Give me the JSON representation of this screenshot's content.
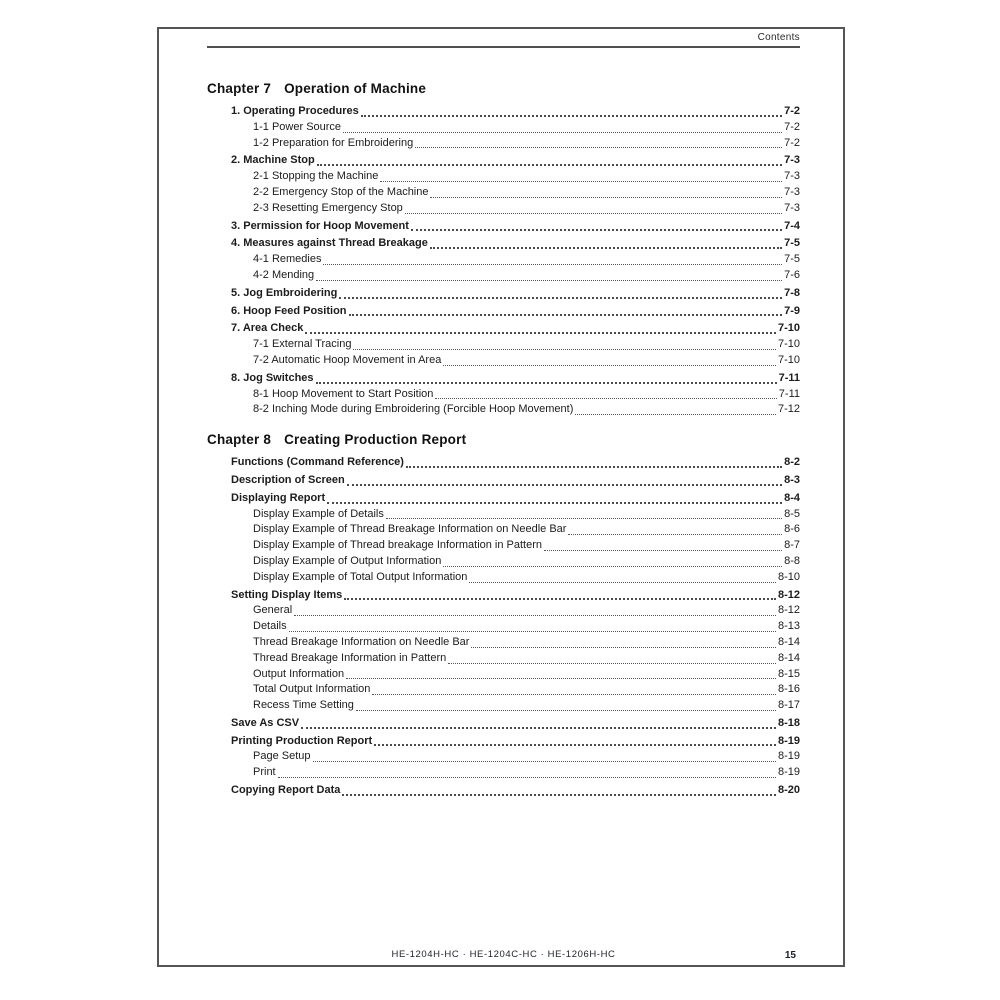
{
  "header": {
    "label": "Contents"
  },
  "footer": {
    "models": "HE-1204H-HC · HE-1204C-HC · HE-1206H-HC",
    "page_number": "15"
  },
  "colors": {
    "text": "#1c1c1c",
    "rule": "#4f4f4f",
    "leader": "#4a4a4a",
    "border": "#555555"
  },
  "toc": {
    "chapters": [
      {
        "label": "Chapter 7",
        "title": "Operation of Machine",
        "entries": [
          {
            "text": "1. Operating Procedures",
            "page": "7-2",
            "level": 1
          },
          {
            "text": "1-1 Power Source",
            "page": "7-2",
            "level": 2
          },
          {
            "text": "1-2 Preparation for Embroidering",
            "page": "7-2",
            "level": 2
          },
          {
            "text": "2. Machine Stop",
            "page": "7-3",
            "level": 1
          },
          {
            "text": "2-1 Stopping the Machine",
            "page": "7-3",
            "level": 2
          },
          {
            "text": "2-2 Emergency Stop of the Machine",
            "page": "7-3",
            "level": 2
          },
          {
            "text": "2-3 Resetting Emergency Stop",
            "page": "7-3",
            "level": 2
          },
          {
            "text": "3. Permission for Hoop Movement",
            "page": "7-4",
            "level": 1
          },
          {
            "text": "4. Measures against Thread Breakage",
            "page": "7-5",
            "level": 1
          },
          {
            "text": "4-1 Remedies",
            "page": "7-5",
            "level": 2
          },
          {
            "text": "4-2 Mending",
            "page": "7-6",
            "level": 2
          },
          {
            "text": "5. Jog Embroidering",
            "page": "7-8",
            "level": 1
          },
          {
            "text": "6. Hoop Feed Position",
            "page": "7-9",
            "level": 1
          },
          {
            "text": "7. Area Check",
            "page": "7-10",
            "level": 1
          },
          {
            "text": "7-1 External Tracing",
            "page": "7-10",
            "level": 2
          },
          {
            "text": "7-2 Automatic Hoop Movement in Area",
            "page": "7-10",
            "level": 2
          },
          {
            "text": "8. Jog Switches",
            "page": "7-11",
            "level": 1
          },
          {
            "text": "8-1 Hoop Movement to Start Position",
            "page": "7-11",
            "level": 2
          },
          {
            "text": "8-2 Inching Mode during Embroidering (Forcible Hoop Movement)",
            "page": "7-12",
            "level": 2
          }
        ]
      },
      {
        "label": "Chapter 8",
        "title": "Creating Production Report",
        "entries": [
          {
            "text": "Functions (Command Reference)",
            "page": "8-2",
            "level": 1
          },
          {
            "text": "Description of Screen",
            "page": "8-3",
            "level": 1
          },
          {
            "text": "Displaying Report",
            "page": "8-4",
            "level": 1
          },
          {
            "text": "Display Example of Details",
            "page": "8-5",
            "level": 2
          },
          {
            "text": "Display Example of Thread Breakage Information on Needle Bar",
            "page": "8-6",
            "level": 2
          },
          {
            "text": "Display Example of Thread breakage Information in Pattern",
            "page": "8-7",
            "level": 2
          },
          {
            "text": "Display Example of Output Information",
            "page": "8-8",
            "level": 2
          },
          {
            "text": "Display Example of Total Output Information",
            "page": "8-10",
            "level": 2
          },
          {
            "text": "Setting Display Items",
            "page": "8-12",
            "level": 1
          },
          {
            "text": "General",
            "page": "8-12",
            "level": 2
          },
          {
            "text": "Details",
            "page": "8-13",
            "level": 2
          },
          {
            "text": "Thread Breakage Information on Needle Bar",
            "page": "8-14",
            "level": 2
          },
          {
            "text": "Thread Breakage Information in Pattern",
            "page": "8-14",
            "level": 2
          },
          {
            "text": "Output Information",
            "page": "8-15",
            "level": 2
          },
          {
            "text": "Total Output Information",
            "page": "8-16",
            "level": 2
          },
          {
            "text": "Recess Time Setting",
            "page": "8-17",
            "level": 2
          },
          {
            "text": "Save As CSV",
            "page": "8-18",
            "level": 1
          },
          {
            "text": "Printing Production Report",
            "page": "8-19",
            "level": 1
          },
          {
            "text": "Page Setup",
            "page": "8-19",
            "level": 2
          },
          {
            "text": "Print",
            "page": "8-19",
            "level": 2
          },
          {
            "text": "Copying Report Data",
            "page": "8-20",
            "level": 1
          }
        ]
      }
    ]
  }
}
